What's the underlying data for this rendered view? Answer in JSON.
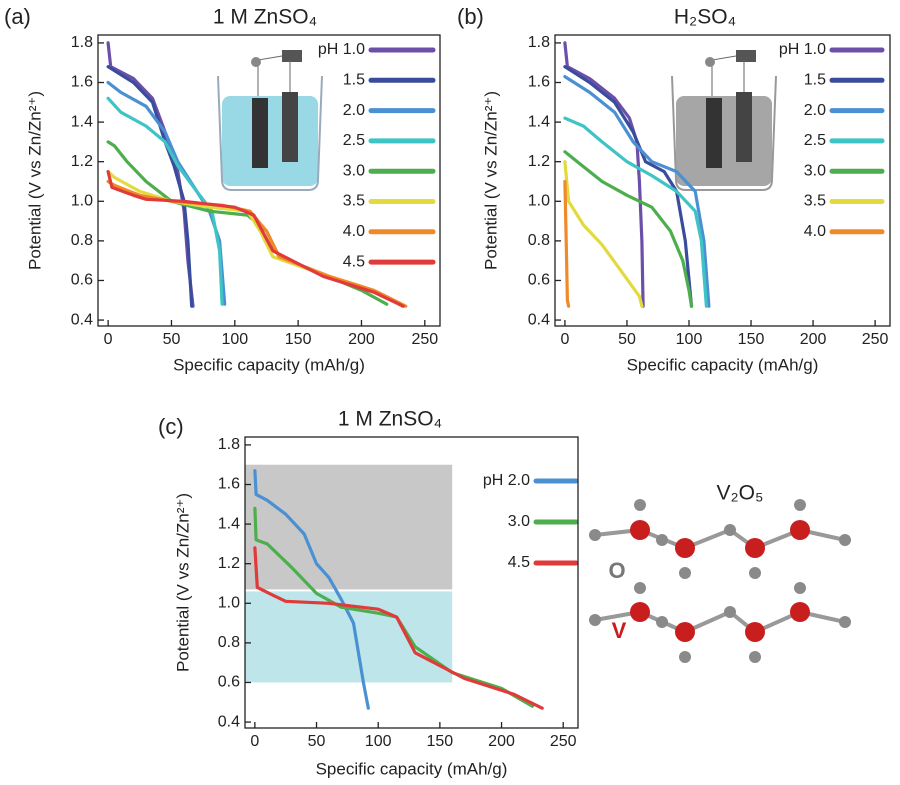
{
  "chart_data": [
    {
      "type": "line",
      "panel_label": "(a)",
      "title": "1 M ZnSO₄",
      "x_label": "Specific capacity (mAh/g)",
      "y_label": "Potential (V vs Zn/Zn²⁺)",
      "xlim": [
        -8,
        262
      ],
      "ylim": [
        0.37,
        1.84
      ],
      "xticks": [
        0,
        50,
        100,
        150,
        200,
        250
      ],
      "yticks": [
        0.4,
        0.6,
        0.8,
        {
          "value": 1,
          "label": "1.0"
        },
        1.2,
        1.4,
        1.6,
        1.8
      ],
      "series": [
        {
          "name": "pH 1.0",
          "color": "#6b4fa8",
          "x": [
            0,
            2,
            20,
            35,
            45,
            55,
            60,
            63,
            67
          ],
          "values": [
            1.8,
            1.68,
            1.62,
            1.52,
            1.35,
            1.15,
            0.95,
            0.7,
            0.47
          ]
        },
        {
          "name": "1.5",
          "color": "#3a4c9c",
          "x": [
            0,
            20,
            35,
            45,
            52,
            60,
            63,
            66
          ],
          "values": [
            1.68,
            1.6,
            1.5,
            1.3,
            1.18,
            1.0,
            0.8,
            0.47
          ]
        },
        {
          "name": "2.0",
          "color": "#4a90d2",
          "x": [
            0,
            10,
            30,
            45,
            55,
            65,
            80,
            88,
            92
          ],
          "values": [
            1.6,
            1.55,
            1.48,
            1.35,
            1.2,
            1.1,
            0.95,
            0.8,
            0.48
          ]
        },
        {
          "name": "2.5",
          "color": "#3ec3c6",
          "x": [
            0,
            10,
            30,
            45,
            55,
            70,
            82,
            88,
            90
          ],
          "values": [
            1.52,
            1.45,
            1.38,
            1.3,
            1.18,
            1.05,
            0.95,
            0.75,
            0.48
          ]
        },
        {
          "name": "3.0",
          "color": "#4cae4c",
          "x": [
            0,
            5,
            15,
            30,
            50,
            80,
            110,
            125,
            135,
            170,
            200,
            220
          ],
          "values": [
            1.3,
            1.28,
            1.2,
            1.1,
            1.0,
            0.95,
            0.93,
            0.85,
            0.72,
            0.63,
            0.55,
            0.48
          ]
        },
        {
          "name": "3.5",
          "color": "#e2da3e",
          "x": [
            0,
            5,
            25,
            50,
            80,
            110,
            120,
            130,
            170,
            200,
            225,
            232
          ],
          "values": [
            1.15,
            1.12,
            1.05,
            1.0,
            0.97,
            0.95,
            0.85,
            0.72,
            0.63,
            0.57,
            0.5,
            0.47
          ]
        },
        {
          "name": "4.0",
          "color": "#f08a28",
          "x": [
            0,
            5,
            25,
            50,
            90,
            112,
            125,
            135,
            175,
            210,
            235
          ],
          "values": [
            1.1,
            1.08,
            1.03,
            1.0,
            0.98,
            0.95,
            0.85,
            0.72,
            0.62,
            0.55,
            0.47
          ]
        },
        {
          "name": "4.5",
          "color": "#e03a3a",
          "x": [
            0,
            3,
            20,
            30,
            60,
            100,
            115,
            130,
            170,
            210,
            233
          ],
          "values": [
            1.15,
            1.07,
            1.03,
            1.01,
            1.0,
            0.97,
            0.93,
            0.75,
            0.62,
            0.54,
            0.47
          ]
        }
      ]
    },
    {
      "type": "line",
      "panel_label": "(b)",
      "title": "H₂SO₄",
      "x_label": "Specific capacity (mAh/g)",
      "y_label": "Potential (V vs Zn/Zn²⁺)",
      "xlim": [
        -8,
        262
      ],
      "ylim": [
        0.37,
        1.84
      ],
      "xticks": [
        0,
        50,
        100,
        150,
        200,
        250
      ],
      "yticks": [
        0.4,
        0.6,
        0.8,
        {
          "value": 1,
          "label": "1.0"
        },
        1.2,
        1.4,
        1.6,
        1.8
      ],
      "series": [
        {
          "name": "pH 1.0",
          "color": "#6b4fa8",
          "x": [
            0,
            2,
            20,
            40,
            52,
            58,
            60,
            62,
            63
          ],
          "values": [
            1.8,
            1.68,
            1.62,
            1.52,
            1.42,
            1.3,
            1.1,
            0.8,
            0.47
          ]
        },
        {
          "name": "1.5",
          "color": "#3a4c9c",
          "x": [
            0,
            20,
            40,
            55,
            65,
            80,
            90,
            97,
            102
          ],
          "values": [
            1.68,
            1.6,
            1.5,
            1.35,
            1.2,
            1.15,
            1.05,
            0.8,
            0.47
          ]
        },
        {
          "name": "2.0",
          "color": "#4a90d2",
          "x": [
            0,
            20,
            40,
            55,
            70,
            90,
            105,
            112,
            116
          ],
          "values": [
            1.63,
            1.55,
            1.45,
            1.3,
            1.2,
            1.15,
            1.05,
            0.8,
            0.47
          ]
        },
        {
          "name": "2.5",
          "color": "#3ec3c6",
          "x": [
            0,
            15,
            30,
            50,
            70,
            90,
            105,
            110,
            114
          ],
          "values": [
            1.42,
            1.38,
            1.3,
            1.2,
            1.13,
            1.05,
            0.95,
            0.8,
            0.47
          ]
        },
        {
          "name": "3.0",
          "color": "#4cae4c",
          "x": [
            0,
            10,
            30,
            50,
            70,
            85,
            95,
            100,
            102
          ],
          "values": [
            1.25,
            1.2,
            1.1,
            1.03,
            0.97,
            0.85,
            0.7,
            0.55,
            0.47
          ]
        },
        {
          "name": "3.5",
          "color": "#e2da3e",
          "x": [
            0,
            3,
            15,
            30,
            45,
            60,
            62
          ],
          "values": [
            1.2,
            1.0,
            0.88,
            0.78,
            0.65,
            0.52,
            0.47
          ]
        },
        {
          "name": "4.0",
          "color": "#f08a28",
          "x": [
            0,
            1,
            2,
            3
          ],
          "values": [
            1.1,
            0.8,
            0.5,
            0.47
          ]
        }
      ]
    },
    {
      "type": "line",
      "panel_label": "(c)",
      "title": "1 M ZnSO₄",
      "x_label": "Specific capacity (mAh/g)",
      "y_label": "Potential (V vs Zn/Zn²⁺)",
      "xlim": [
        -8,
        262
      ],
      "ylim": [
        0.37,
        1.84
      ],
      "xticks": [
        0,
        50,
        100,
        150,
        200,
        250
      ],
      "yticks": [
        0.4,
        0.6,
        0.8,
        {
          "value": 1,
          "label": "1.0"
        },
        1.2,
        1.4,
        1.6,
        1.8
      ],
      "regions": [
        {
          "x": [
            -8,
            160
          ],
          "y": [
            1.07,
            1.7
          ],
          "color": "#c8c8c8"
        },
        {
          "x": [
            -8,
            160
          ],
          "y": [
            0.6,
            1.06
          ],
          "color": "#bde5ea"
        }
      ],
      "series": [
        {
          "name": "pH 2.0",
          "color": "#4a90d2",
          "x": [
            0,
            1,
            10,
            25,
            40,
            50,
            60,
            70,
            80,
            88,
            92
          ],
          "values": [
            1.67,
            1.55,
            1.52,
            1.45,
            1.35,
            1.2,
            1.13,
            1.02,
            0.9,
            0.6,
            0.47
          ]
        },
        {
          "name": "3.0",
          "color": "#4cae4c",
          "x": [
            0,
            1,
            10,
            30,
            50,
            70,
            100,
            115,
            130,
            160,
            200,
            225
          ],
          "values": [
            1.48,
            1.32,
            1.3,
            1.18,
            1.05,
            0.98,
            0.95,
            0.93,
            0.78,
            0.65,
            0.57,
            0.48
          ]
        },
        {
          "name": "4.5",
          "color": "#e03a3a",
          "x": [
            0,
            2,
            15,
            25,
            60,
            100,
            115,
            130,
            170,
            210,
            233
          ],
          "values": [
            1.28,
            1.08,
            1.04,
            1.01,
            1.0,
            0.97,
            0.93,
            0.75,
            0.62,
            0.54,
            0.47
          ]
        }
      ]
    }
  ],
  "structure": {
    "title": "V₂O₅",
    "labels": [
      "O",
      "V"
    ]
  }
}
